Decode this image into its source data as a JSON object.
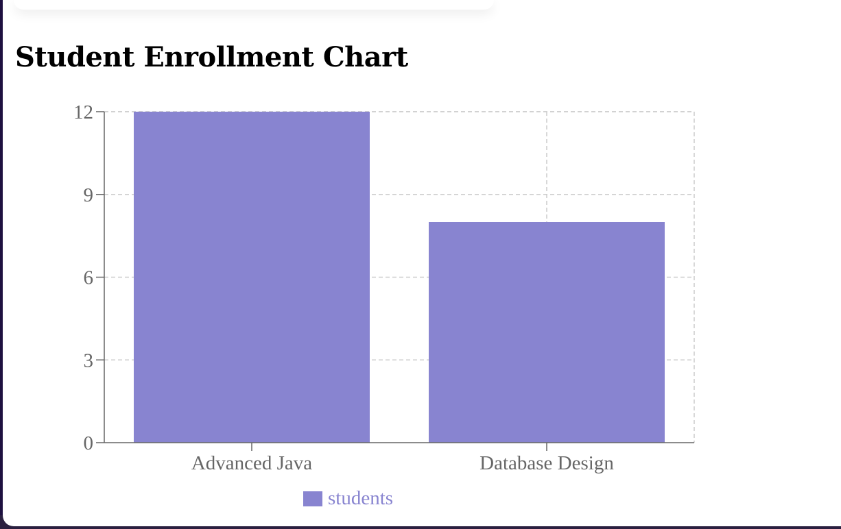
{
  "title": "Student Enrollment Chart",
  "colors": {
    "bar": "#8884d0",
    "grid": "#cccccc",
    "axis": "#666666",
    "legend_text": "#8884d0"
  },
  "chart_data": {
    "type": "bar",
    "title": "Student Enrollment Chart",
    "xlabel": "",
    "ylabel": "",
    "categories": [
      "Advanced Java",
      "Database Design"
    ],
    "series": [
      {
        "name": "students",
        "values": [
          12,
          8
        ]
      }
    ],
    "ylim": [
      0,
      12
    ],
    "yticks": [
      "0",
      "3",
      "6",
      "9",
      "12"
    ],
    "grid": true,
    "legend": "bottom-center"
  }
}
